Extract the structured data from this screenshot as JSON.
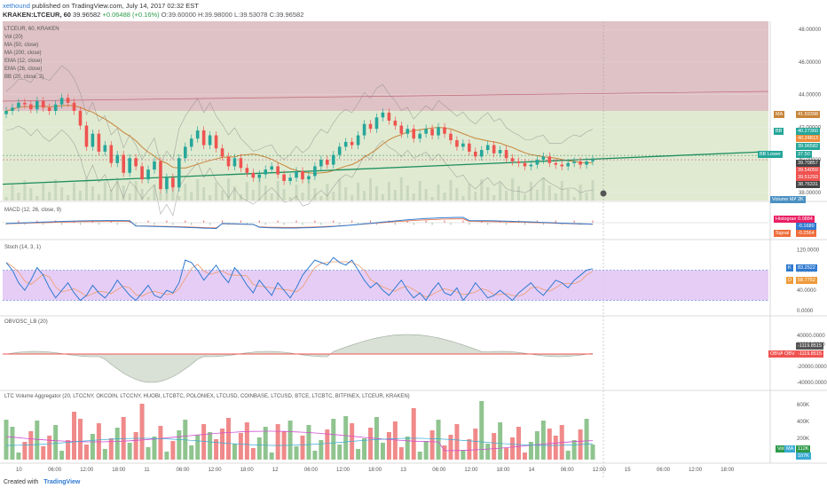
{
  "header": {
    "user": "xethound",
    "published": "published on TradingView.com, July 14, 2017 02:32 EST",
    "symbol_line": "KRAKEN:LTCEUR, 60",
    "last": "39.96582",
    "change": "+0.06488 (+0.16%)",
    "o": "O:39.60000",
    "h": "H:39.98000",
    "l": "L:39.53078",
    "c": "C:39.96582"
  },
  "legend": {
    "title": "LTCEUR, 60, KRAKEN",
    "items": [
      "Vol (20)",
      "MA (50, close)",
      "MA (200, close)",
      "EMA (12, close)",
      "EMA (26, close)",
      "BB (20, close, 2)"
    ]
  },
  "panes": {
    "macd_title": "MACD (12, 26, close, 9)",
    "stoch_title": "Stoch (14, 3, 1)",
    "obv_title": "OBVOSC_LB (20)",
    "vol_title": "LTC Volume Aggregator (20, LTCCNY, OKCOIN, LTCCNY, HUOBI, LTCBTC, POLONIEX, LTCUSD, COINBASE, LTCUSD, BTCE, LTCBTC, BITFINEX, LTCEUR, KRAKEN)"
  },
  "colors": {
    "up": "#26a69a",
    "down": "#ef5350",
    "upper_band_zone": "#d9b7bb",
    "lower_band_zone": "#dde8cc",
    "trendline": "#1e8e5e",
    "ma50": "#c8853a",
    "stoch_fill": "#e3c8f4",
    "macd_line": "#2f7ad1",
    "signal_line": "#ef6c3a"
  },
  "price_axis": {
    "ticks": [
      "48.00000",
      "46.00000",
      "44.00000",
      "42.00000",
      "40.00000",
      "38.00000"
    ],
    "labels": [
      {
        "text": "MA",
        "value": "41.59398",
        "color": "#c8853a"
      },
      {
        "text": "BB",
        "value": "40.27360",
        "color": "#26a69a"
      },
      {
        "text": "",
        "value": "40.24813",
        "color": "#ef8c3a"
      },
      {
        "text": "",
        "value": "39.96582",
        "color": "#26a69a"
      },
      {
        "text": "BB Lower",
        "value": "37.50",
        "color": "#26a69a"
      },
      {
        "text": "",
        "value": "39.70857",
        "color": "#444"
      },
      {
        "text": "",
        "value": "39.54059",
        "color": "#ef5350"
      },
      {
        "text": "",
        "value": "39.51293",
        "color": "#ef5350"
      },
      {
        "text": "",
        "value": "38.76331",
        "color": "#444"
      }
    ],
    "volume_badge": "Volume MA",
    "volume_value": "2K"
  },
  "macd_axis": {
    "labels": [
      {
        "text": "Histogram",
        "value": "0.0884",
        "color": "#e91e63"
      },
      {
        "text": "",
        "value": "-0.1680",
        "color": "#2f7ad1"
      },
      {
        "text": "Signal",
        "value": "-0.2564",
        "color": "#ef6c3a"
      }
    ]
  },
  "stoch_axis": {
    "ticks": [
      "120.0000",
      "80.0000",
      "40.0000",
      "0.0000"
    ],
    "k_label": "K",
    "k_value": "83.2522",
    "d_label": "D",
    "d_value": "58.7752"
  },
  "obv_axis": {
    "ticks": [
      "40000.0000",
      "20000.0000",
      "-20000.0000",
      "-40000.0000"
    ],
    "val1": "-1119.8515",
    "lbl1": "OBVA",
    "lbl2": "OBV",
    "val2": "-1119.8515"
  },
  "vol_axis": {
    "ticks": [
      "600K",
      "400K",
      "200K"
    ],
    "lbl1": "Vol",
    "lbl2": "MA",
    "v1": "112K",
    "v2": "107K"
  },
  "time_axis": [
    "10",
    "06:00",
    "12:00",
    "18:00",
    "11",
    "06:00",
    "12:00",
    "18:00",
    "12",
    "06:00",
    "12:00",
    "18:00",
    "13",
    "06:00",
    "12:00",
    "18:00",
    "14",
    "06:00",
    "12:00",
    "15",
    "06:00",
    "12:00",
    "18:00"
  ],
  "footer": {
    "created": "Created with",
    "brand": "TradingView"
  },
  "chart_data": {
    "type": "line",
    "title": "LTCEUR, 60, KRAKEN",
    "ylim": [
      37.5,
      48.5
    ],
    "series": [
      {
        "name": "LTCEUR close",
        "values": [
          43.0,
          43.2,
          43.5,
          43.4,
          43.1,
          43.6,
          43.2,
          43.0,
          43.4,
          43.8,
          43.5,
          43.0,
          42.1,
          40.8,
          41.6,
          40.5,
          40.9,
          39.8,
          40.3,
          39.2,
          40.1,
          39.6,
          38.8,
          39.4,
          39.9,
          38.2,
          38.9,
          38.3,
          40.1,
          40.8,
          41.3,
          41.8,
          40.9,
          41.5,
          40.7,
          40.2,
          39.6,
          40.1,
          39.5,
          39.2,
          38.9,
          39.1,
          39.4,
          39.6,
          39.1,
          38.7,
          38.9,
          39.3,
          38.8,
          39.0,
          39.6,
          40.0,
          39.7,
          40.3,
          40.8,
          41.1,
          40.9,
          41.5,
          42.2,
          41.9,
          42.6,
          42.9,
          42.4,
          42.1,
          41.6,
          41.9,
          41.3,
          41.6,
          41.9,
          41.5,
          42.0,
          41.6,
          41.2,
          40.8,
          41.0,
          40.5,
          40.2,
          40.6,
          40.9,
          40.4,
          40.6,
          40.1,
          39.9,
          39.8,
          39.6,
          39.7,
          40.0,
          40.2,
          39.8,
          39.7,
          39.6,
          39.8,
          39.9,
          39.7,
          39.9,
          40.0
        ]
      }
    ],
    "stoch_k": [
      95,
      80,
      55,
      40,
      60,
      85,
      70,
      45,
      25,
      40,
      55,
      35,
      20,
      30,
      50,
      35,
      25,
      40,
      60,
      45,
      30,
      20,
      35,
      50,
      30,
      25,
      40,
      35,
      55,
      100,
      95,
      80,
      60,
      75,
      90,
      70,
      55,
      85,
      70,
      50,
      35,
      60,
      45,
      30,
      55,
      40,
      25,
      45,
      70,
      85,
      100,
      95,
      90,
      105,
      95,
      90,
      100,
      80,
      60,
      45,
      55,
      40,
      30,
      45,
      60,
      40,
      25,
      35,
      20,
      40,
      55,
      35,
      30,
      45,
      20,
      35,
      55,
      40,
      25,
      30,
      40,
      30,
      20,
      35,
      45,
      55,
      40,
      30,
      45,
      60,
      55,
      45,
      60,
      70,
      80,
      83
    ]
  }
}
